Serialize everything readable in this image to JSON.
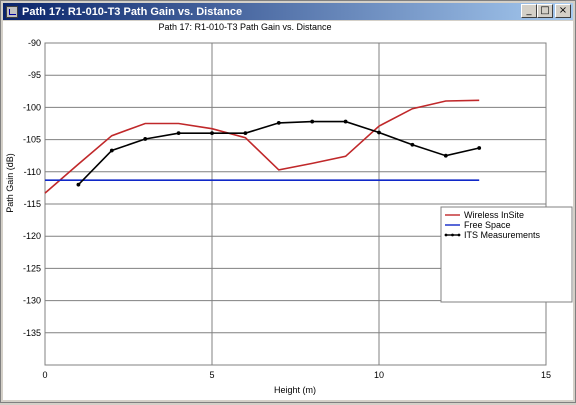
{
  "window": {
    "title": "Path 17: R1-010-T3  Path Gain vs. Distance",
    "buttons": {
      "minimize": "_",
      "maximize": "□",
      "close": "×"
    }
  },
  "chart_data": {
    "type": "line",
    "title": "Path 17: R1-010-T3  Path Gain vs. Distance",
    "xlabel": "Height (m)",
    "ylabel": "Path Gain (dB)",
    "xlim": [
      0,
      15
    ],
    "ylim": [
      -140,
      -90
    ],
    "xticks": [
      0,
      5,
      10,
      15
    ],
    "yticks": [
      -90,
      -95,
      -100,
      -105,
      -110,
      -115,
      -120,
      -125,
      -130,
      -135
    ],
    "grid": true,
    "legend_position": "right",
    "series": [
      {
        "name": "Wireless InSite",
        "color": "#c0282a",
        "markers": false,
        "x": [
          0,
          1,
          2,
          3,
          4,
          5,
          6,
          7,
          8,
          9,
          10,
          11,
          12,
          13
        ],
        "y": [
          -113.3,
          -108.8,
          -104.4,
          -102.5,
          -102.5,
          -103.3,
          -104.7,
          -109.7,
          -108.7,
          -107.6,
          -102.9,
          -100.2,
          -99.0,
          -98.9
        ]
      },
      {
        "name": "Free Space",
        "color": "#1028c8",
        "markers": false,
        "x": [
          0,
          13
        ],
        "y": [
          -111.3,
          -111.3
        ]
      },
      {
        "name": "ITS Measurements",
        "color": "#000000",
        "markers": true,
        "x": [
          1,
          2,
          3,
          4,
          5,
          6,
          7,
          8,
          9,
          10,
          11,
          12,
          13
        ],
        "y": [
          -112.0,
          -106.7,
          -104.9,
          -104.0,
          -104.0,
          -104.0,
          -102.4,
          -102.2,
          -102.2,
          -103.9,
          -105.8,
          -107.5,
          -106.3
        ]
      }
    ]
  }
}
